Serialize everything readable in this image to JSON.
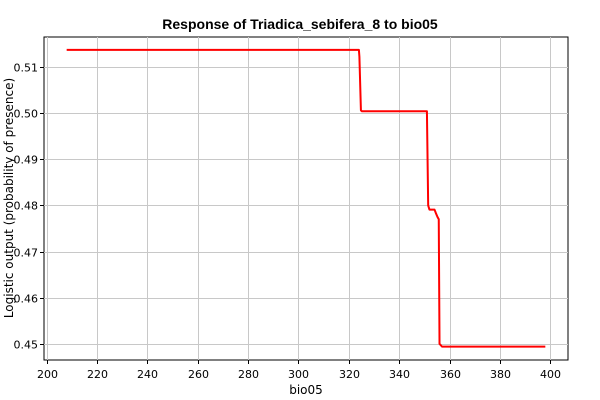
{
  "chart_data": {
    "type": "line",
    "title": "Response of Triadica_sebifera_8 to bio05",
    "xlabel": "bio05",
    "ylabel": "Logistic output (probability of presence)",
    "xlim": [
      199,
      407
    ],
    "ylim": [
      0.4465,
      0.5165
    ],
    "x_ticks": [
      200,
      220,
      240,
      260,
      280,
      300,
      320,
      340,
      360,
      380,
      400
    ],
    "y_ticks": [
      0.45,
      0.46,
      0.47,
      0.48,
      0.49,
      0.5,
      0.51
    ],
    "y_tick_labels": [
      "0.45",
      "0.46",
      "0.47",
      "0.48",
      "0.49",
      "0.50",
      "0.51"
    ],
    "grid": true,
    "legend": "none",
    "series": [
      {
        "color": "#ff0000",
        "x": [
          208,
          324,
          324.2,
          324.8,
          325.2,
          351,
          351.5,
          352,
          354,
          354.5,
          355.2,
          355.7,
          356,
          357,
          398
        ],
        "y": [
          0.5137,
          0.5137,
          0.5122,
          0.5006,
          0.5004,
          0.5004,
          0.48,
          0.4791,
          0.4791,
          0.4784,
          0.4775,
          0.477,
          0.45,
          0.4494,
          0.4494
        ]
      }
    ]
  }
}
